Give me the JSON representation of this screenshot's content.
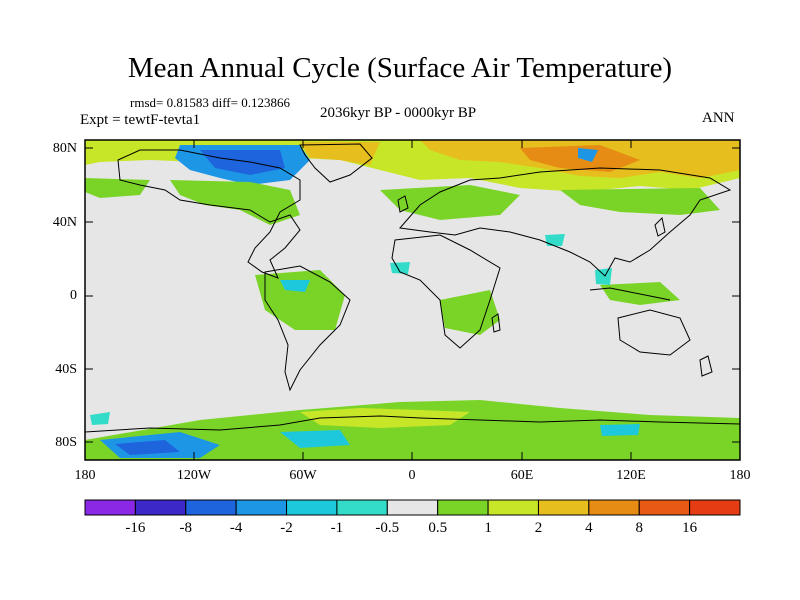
{
  "title": "Mean Annual Cycle (Surface Air Temperature)",
  "stats": "rmsd= 0.81583 diff= 0.123866",
  "experiment": "Expt = tewtF-tevta1",
  "period": "2036kyr BP - 0000kyr BP",
  "season": "ANN",
  "map": {
    "lat_ticks": [
      "80N",
      "40N",
      "0",
      "40S",
      "80S"
    ],
    "lon_ticks": [
      "180",
      "120W",
      "60W",
      "0",
      "60E",
      "120E",
      "180"
    ],
    "background_color": "#e6e6e6"
  },
  "colorbar": {
    "labels": [
      "-16",
      "-8",
      "-4",
      "-2",
      "-1",
      "-0.5",
      "0.5",
      "1",
      "2",
      "4",
      "8",
      "16"
    ],
    "colors": [
      "#8a28e6",
      "#3c28c8",
      "#1e64dc",
      "#1e96e6",
      "#1ec8dc",
      "#32dcc8",
      "#e6e6e6",
      "#7ad428",
      "#c8e628",
      "#e6be1e",
      "#e68c14",
      "#e65a14",
      "#e63c14"
    ]
  }
}
